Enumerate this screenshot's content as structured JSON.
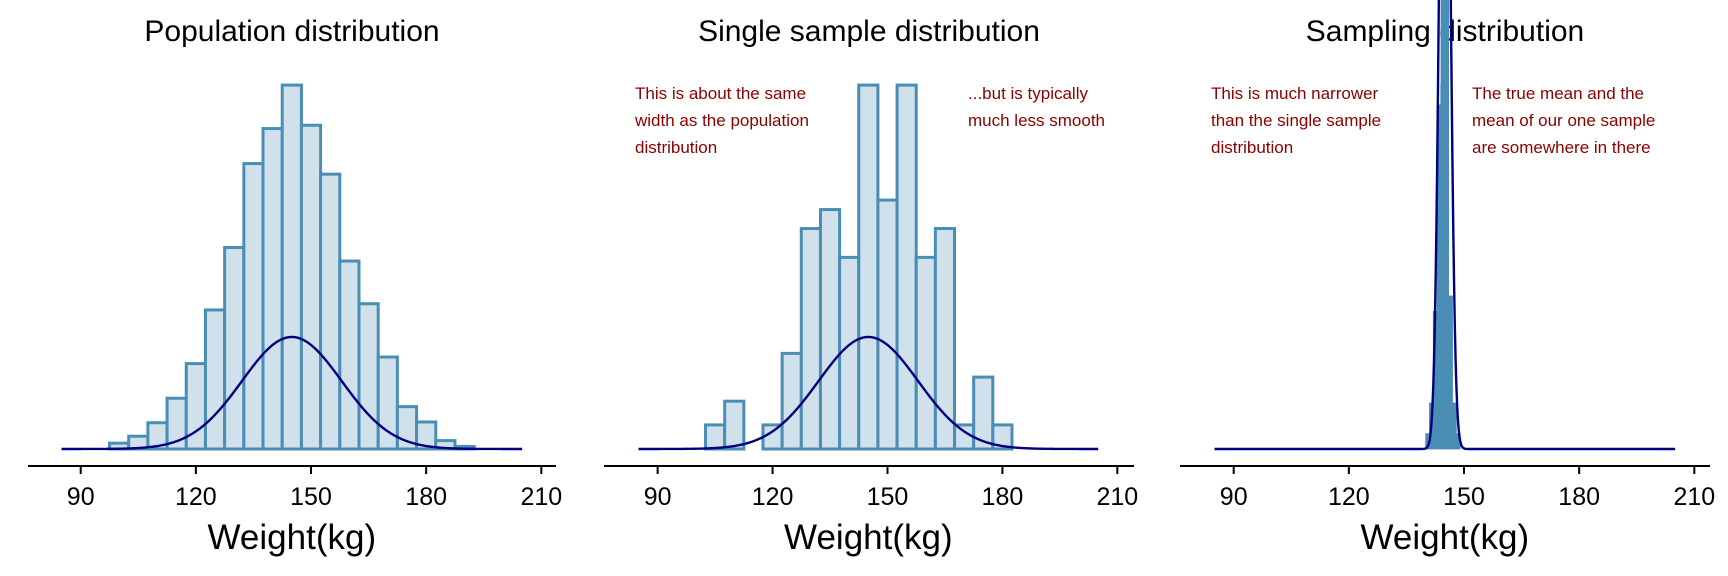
{
  "colors": {
    "bar_fill": "#d0e1ec",
    "bar_edge": "#4a8db5",
    "sampling_fill": "#4a8db5",
    "curve": "#000080",
    "annotation": "#8b0000",
    "axis": "#000000"
  },
  "chart_data": [
    {
      "type": "bar",
      "title": "Population distribution",
      "xlabel": "Weight(kg)",
      "ylabel": "",
      "xlim": [
        82,
        212
      ],
      "xticks": [
        "90",
        "120",
        "150",
        "180",
        "210"
      ],
      "bin_width": 5,
      "bins": [
        {
          "x0": 97.5,
          "density": 0.0016
        },
        {
          "x0": 102.5,
          "density": 0.0035
        },
        {
          "x0": 107.5,
          "density": 0.0072
        },
        {
          "x0": 112.5,
          "density": 0.0139
        },
        {
          "x0": 117.5,
          "density": 0.0234
        },
        {
          "x0": 122.5,
          "density": 0.0381
        },
        {
          "x0": 127.5,
          "density": 0.0552
        },
        {
          "x0": 132.5,
          "density": 0.0782
        },
        {
          "x0": 137.5,
          "density": 0.0878
        },
        {
          "x0": 142.5,
          "density": 0.0997
        },
        {
          "x0": 147.5,
          "density": 0.0887
        },
        {
          "x0": 152.5,
          "density": 0.0753
        },
        {
          "x0": 157.5,
          "density": 0.0515
        },
        {
          "x0": 162.5,
          "density": 0.0398
        },
        {
          "x0": 167.5,
          "density": 0.0252
        },
        {
          "x0": 172.5,
          "density": 0.0116
        },
        {
          "x0": 177.5,
          "density": 0.0074
        },
        {
          "x0": 182.5,
          "density": 0.0023
        },
        {
          "x0": 187.5,
          "density": 0.0007
        }
      ],
      "curve": {
        "type": "normal",
        "mean": 145,
        "sd": 13,
        "x_range": [
          85,
          205
        ]
      },
      "annotations": []
    },
    {
      "type": "bar",
      "title": "Single sample distribution",
      "xlabel": "Weight(kg)",
      "ylabel": "",
      "xlim": [
        82,
        212
      ],
      "xticks": [
        "90",
        "120",
        "150",
        "180",
        "210"
      ],
      "bin_width": 5,
      "bins": [
        {
          "x0": 102.5,
          "density": 0.0066
        },
        {
          "x0": 107.5,
          "density": 0.0131
        },
        {
          "x0": 112.5,
          "density": 0.0
        },
        {
          "x0": 117.5,
          "density": 0.0066
        },
        {
          "x0": 122.5,
          "density": 0.0262
        },
        {
          "x0": 127.5,
          "density": 0.0604
        },
        {
          "x0": 132.5,
          "density": 0.0656
        },
        {
          "x0": 137.5,
          "density": 0.0525
        },
        {
          "x0": 142.5,
          "density": 0.0997
        },
        {
          "x0": 147.5,
          "density": 0.0682
        },
        {
          "x0": 152.5,
          "density": 0.0997
        },
        {
          "x0": 157.5,
          "density": 0.0525
        },
        {
          "x0": 162.5,
          "density": 0.0604
        },
        {
          "x0": 167.5,
          "density": 0.0066
        },
        {
          "x0": 172.5,
          "density": 0.0197
        },
        {
          "x0": 177.5,
          "density": 0.0066
        }
      ],
      "curve": {
        "type": "normal",
        "mean": 145,
        "sd": 13,
        "x_range": [
          85,
          205
        ]
      },
      "annotations": [
        {
          "lines": [
            "This is about the same",
            "width as the population",
            "distribution"
          ],
          "anchor": "upper-left"
        },
        {
          "lines": [
            "...but is typically",
            "much less smooth"
          ],
          "anchor": "upper-right"
        }
      ]
    },
    {
      "type": "bar",
      "title": "Sampling distribution",
      "xlabel": "Weight(kg)",
      "ylabel": "",
      "xlim": [
        82,
        212
      ],
      "xticks": [
        "90",
        "120",
        "150",
        "180",
        "210"
      ],
      "bin_width": 1,
      "bins": [
        {
          "x0": 140,
          "density": 0.0051
        },
        {
          "x0": 141,
          "density": 0.0153
        },
        {
          "x0": 142,
          "density": 0.0459
        },
        {
          "x0": 143,
          "density": 0.1147
        },
        {
          "x0": 144,
          "density": 0.1861
        },
        {
          "x0": 145,
          "density": 0.1759
        },
        {
          "x0": 146,
          "density": 0.051
        },
        {
          "x0": 147,
          "density": 0.0153
        },
        {
          "x0": 148,
          "density": 0.0051
        }
      ],
      "reference_line": {
        "x": 144.5,
        "label": ""
      },
      "curve": {
        "type": "normal",
        "mean": 145,
        "sd": 1.3,
        "x_range": [
          85,
          205
        ]
      },
      "annotations": [
        {
          "lines": [
            "This is much narrower",
            "than the single sample",
            "distribution"
          ],
          "anchor": "upper-left"
        },
        {
          "lines": [
            "The true mean and the",
            "mean of our one sample",
            "are somewhere in there"
          ],
          "anchor": "upper-right"
        }
      ]
    }
  ]
}
